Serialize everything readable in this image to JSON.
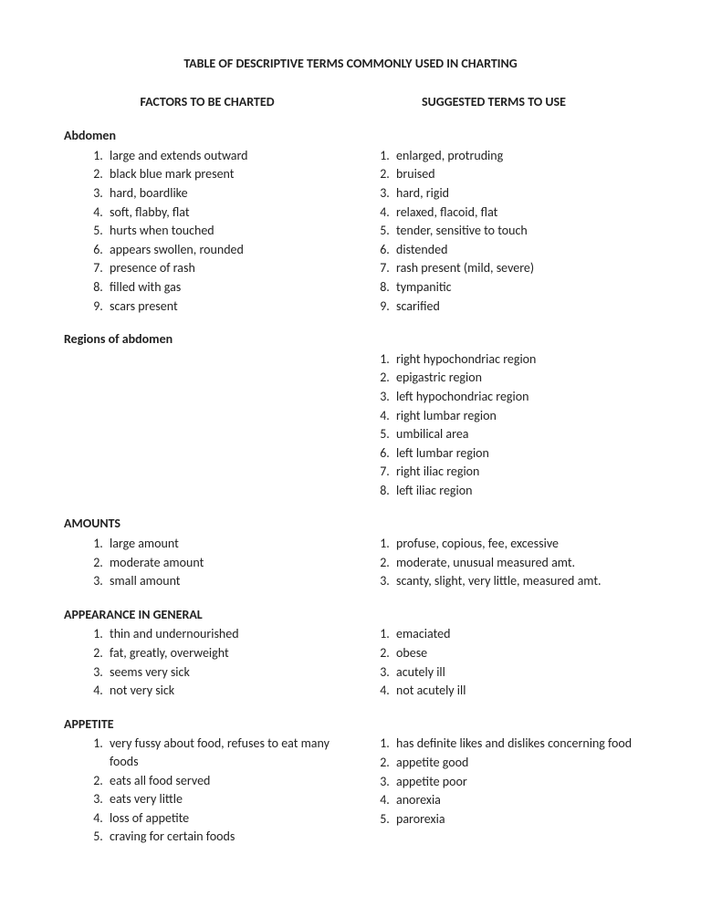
{
  "title": "TABLE OF DESCRIPTIVE TERMS COMMONLY USED IN CHARTING",
  "headers": {
    "left": "FACTORS TO BE CHARTED",
    "right": "SUGGESTED TERMS TO USE"
  },
  "sections": [
    {
      "heading": "Abdomen",
      "left": [
        "large and extends outward",
        "black blue mark present",
        "hard, boardlike",
        "soft, flabby, flat",
        "hurts when touched",
        "appears swollen, rounded",
        "presence of rash",
        "filled with gas",
        "scars present"
      ],
      "right": [
        "enlarged, protruding",
        "bruised",
        "hard, rigid",
        "relaxed, flacoid, flat",
        "tender, sensitive to touch",
        "distended",
        "rash present (mild, severe)",
        "tympanitic",
        "scarified"
      ]
    },
    {
      "heading": "Regions of abdomen",
      "left": [],
      "right": [
        "right hypochondriac region",
        "epigastric region",
        "left hypochondriac region",
        "right lumbar region",
        "umbilical area",
        "left lumbar region",
        "right iliac region",
        "left iliac region"
      ]
    },
    {
      "heading": "AMOUNTS",
      "left": [
        "large amount",
        "moderate amount",
        "small amount"
      ],
      "right": [
        "profuse, copious, fee, excessive",
        "moderate, unusual measured amt.",
        "scanty, slight, very little, measured amt."
      ]
    },
    {
      "heading": "APPEARANCE IN GENERAL",
      "left": [
        "thin and undernourished",
        "fat, greatly, overweight",
        "seems very sick",
        "not very sick"
      ],
      "right": [
        "emaciated",
        "obese",
        "acutely ill",
        "not acutely ill"
      ]
    },
    {
      "heading": "APPETITE",
      "left": [
        "very fussy about food, refuses to eat many foods",
        "eats all food served",
        "eats very little",
        "loss of appetite",
        "craving for certain foods"
      ],
      "right": [
        "has definite likes and dislikes concerning food",
        "appetite good",
        "appetite poor",
        "anorexia",
        "parorexia"
      ]
    }
  ]
}
